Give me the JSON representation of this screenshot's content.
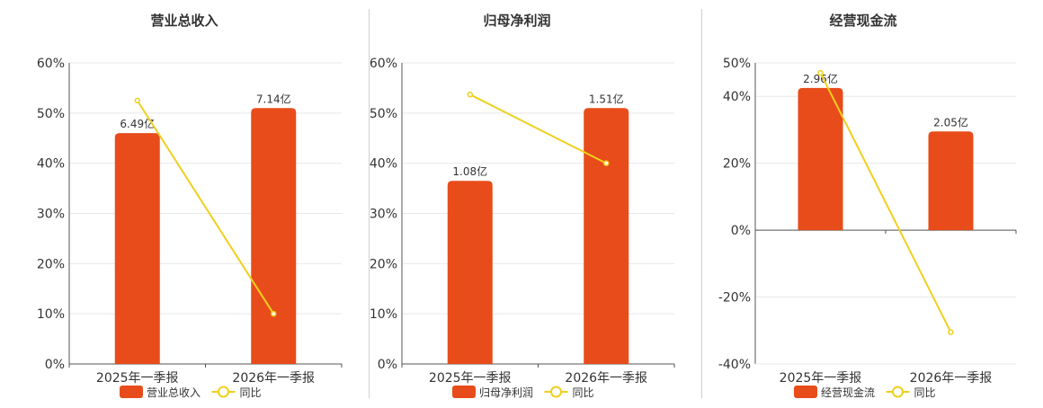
{
  "colors": {
    "bar": "#e84c1a",
    "line": "#f0cf1e",
    "grid": "#e8e8e8",
    "axis": "#555555",
    "text": "#333333"
  },
  "chart_data": [
    {
      "type": "bar",
      "title": "营业总收入",
      "categories": [
        "2025年一季报",
        "2026年一季报"
      ],
      "yticks": [
        "60%",
        "50%",
        "40%",
        "30%",
        "20%",
        "10%",
        "0%"
      ],
      "ylim": [
        0,
        60
      ],
      "legend": "bottom",
      "series": [
        {
          "name": "营业总收入",
          "kind": "bar",
          "values": [
            46,
            51
          ],
          "labels": [
            "6.49亿",
            "7.14亿"
          ]
        },
        {
          "name": "同比",
          "kind": "line",
          "values": [
            52.5,
            10
          ]
        }
      ]
    },
    {
      "type": "bar",
      "title": "归母净利润",
      "categories": [
        "2025年一季报",
        "2026年一季报"
      ],
      "yticks": [
        "60%",
        "50%",
        "40%",
        "30%",
        "20%",
        "10%",
        "0%"
      ],
      "ylim": [
        0,
        60
      ],
      "legend": "bottom",
      "series": [
        {
          "name": "归母净利润",
          "kind": "bar",
          "values": [
            36.5,
            51
          ],
          "labels": [
            "1.08亿",
            "1.51亿"
          ]
        },
        {
          "name": "同比",
          "kind": "line",
          "values": [
            53.7,
            40
          ]
        }
      ]
    },
    {
      "type": "bar",
      "title": "经营现金流",
      "categories": [
        "2025年一季报",
        "2026年一季报"
      ],
      "yticks": [
        "50%",
        "40%",
        "20%",
        "0%",
        "-20%",
        "-40%"
      ],
      "ylim": [
        -40,
        50
      ],
      "legend": "bottom",
      "series": [
        {
          "name": "经营现金流",
          "kind": "bar",
          "values": [
            42.5,
            29.5
          ],
          "labels": [
            "2.96亿",
            "2.05亿"
          ]
        },
        {
          "name": "同比",
          "kind": "line",
          "values": [
            47,
            -30.5
          ]
        }
      ]
    }
  ]
}
